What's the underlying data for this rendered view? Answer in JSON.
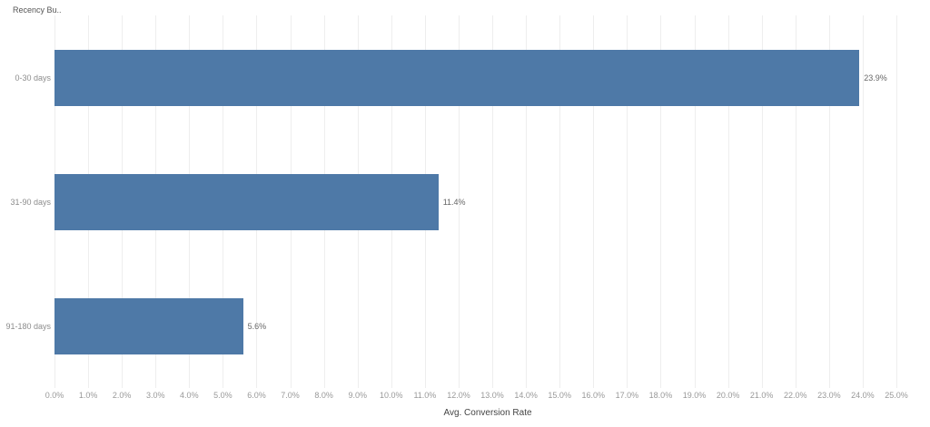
{
  "header": {
    "row_field_label": "Recency Bu.."
  },
  "chart_data": {
    "type": "bar",
    "orientation": "horizontal",
    "title": "",
    "categories": [
      "0-30 days",
      "31-90 days",
      "91-180 days"
    ],
    "values": [
      23.9,
      11.4,
      5.6
    ],
    "value_labels": [
      "23.9%",
      "11.4%",
      "5.6%"
    ],
    "xlabel": "Avg. Conversion Rate",
    "ylabel": "Recency Bu..",
    "xlim": [
      0,
      25.7
    ],
    "x_tick_step": 1.0,
    "x_tick_labels": [
      "0.0%",
      "1.0%",
      "2.0%",
      "3.0%",
      "4.0%",
      "5.0%",
      "6.0%",
      "7.0%",
      "8.0%",
      "9.0%",
      "10.0%",
      "11.0%",
      "12.0%",
      "13.0%",
      "14.0%",
      "15.0%",
      "16.0%",
      "17.0%",
      "18.0%",
      "19.0%",
      "20.0%",
      "21.0%",
      "22.0%",
      "23.0%",
      "24.0%",
      "25.0%"
    ],
    "grid": "vertical",
    "legend": "none",
    "bar_color": "#4e79a7",
    "grid_color": "#eeeeee",
    "background_color": "#ffffff"
  }
}
